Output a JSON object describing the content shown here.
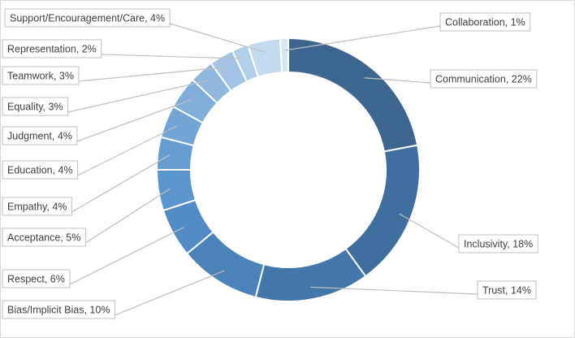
{
  "chart_data": {
    "type": "pie",
    "variant": "doughnut",
    "title": "",
    "legend": "none",
    "start_angle_deg": 0,
    "direction": "clockwise",
    "slices": [
      {
        "label": "Communication",
        "value": 22,
        "display": "Communication, 22%",
        "color": "#3c6690"
      },
      {
        "label": "Inclusivity",
        "value": 18,
        "display": "Inclusivity, 18%",
        "color": "#3f6f9e"
      },
      {
        "label": "Trust",
        "value": 14,
        "display": "Trust, 14%",
        "color": "#4377ab"
      },
      {
        "label": "Bias/Implicit Bias",
        "value": 10,
        "display": "Bias/Implicit Bias, 10%",
        "color": "#4a82ba"
      },
      {
        "label": "Respect",
        "value": 6,
        "display": "Respect, 6%",
        "color": "#518cc6"
      },
      {
        "label": "Acceptance",
        "value": 5,
        "display": "Acceptance, 5%",
        "color": "#5a95cd"
      },
      {
        "label": "Empathy",
        "value": 4,
        "display": "Empathy, 4%",
        "color": "#659dd2"
      },
      {
        "label": "Education",
        "value": 4,
        "display": "Education, 4%",
        "color": "#72a5d6"
      },
      {
        "label": "Judgment",
        "value": 4,
        "display": "Judgment, 4%",
        "color": "#80aeda"
      },
      {
        "label": "Equality",
        "value": 3,
        "display": "Equality, 3%",
        "color": "#90b8de"
      },
      {
        "label": "Teamwork",
        "value": 3,
        "display": "Teamwork, 3%",
        "color": "#a2c3e3"
      },
      {
        "label": "Representation",
        "value": 2,
        "display": "Representation, 2%",
        "color": "#b3cee8"
      },
      {
        "label": "Support/Encouragement/Care",
        "value": 4,
        "display": "Support/Encouragement/Care, 4%",
        "color": "#c5d9ee"
      },
      {
        "label": "Collaboration",
        "value": 1,
        "display": "Collaboration, 1%",
        "color": "#d6e4f3"
      }
    ]
  }
}
